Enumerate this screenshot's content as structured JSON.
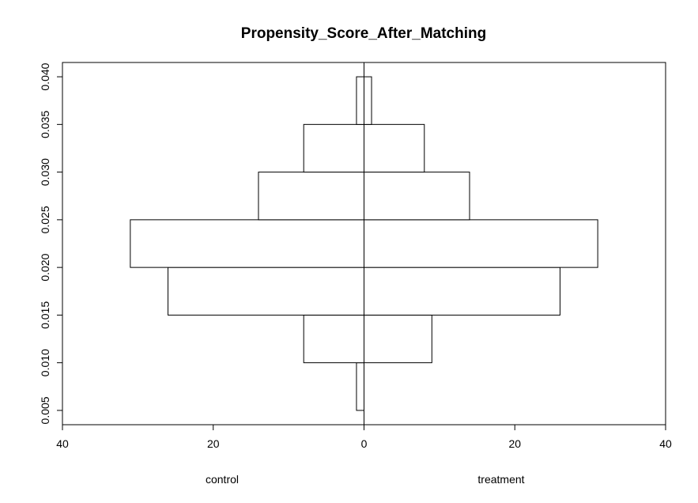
{
  "chart_data": {
    "type": "bar",
    "orientation": "back-to-back-horizontal-histogram",
    "title": "Propensity_Score_After_Matching",
    "xlabel": "",
    "ylabel": "",
    "group_labels": {
      "left": "control",
      "right": "treatment"
    },
    "xlim": [
      -40,
      40
    ],
    "x_ticks": [
      -40,
      -20,
      0,
      20,
      40
    ],
    "x_tick_labels": [
      "40",
      "20",
      "0",
      "20",
      "40"
    ],
    "ylim": [
      0.0035,
      0.0415
    ],
    "y_ticks": [
      0.005,
      0.01,
      0.015,
      0.02,
      0.025,
      0.03,
      0.035,
      0.04
    ],
    "y_tick_labels": [
      "0.005",
      "0.010",
      "0.015",
      "0.020",
      "0.025",
      "0.030",
      "0.035",
      "0.040"
    ],
    "bins": [
      {
        "from": 0.005,
        "to": 0.01,
        "control": 1,
        "treatment": 0
      },
      {
        "from": 0.01,
        "to": 0.015,
        "control": 8,
        "treatment": 9
      },
      {
        "from": 0.015,
        "to": 0.02,
        "control": 26,
        "treatment": 26
      },
      {
        "from": 0.02,
        "to": 0.025,
        "control": 31,
        "treatment": 31
      },
      {
        "from": 0.025,
        "to": 0.03,
        "control": 14,
        "treatment": 14
      },
      {
        "from": 0.03,
        "to": 0.035,
        "control": 8,
        "treatment": 8
      },
      {
        "from": 0.035,
        "to": 0.04,
        "control": 1,
        "treatment": 1
      }
    ],
    "grid": false,
    "legend": "none"
  }
}
